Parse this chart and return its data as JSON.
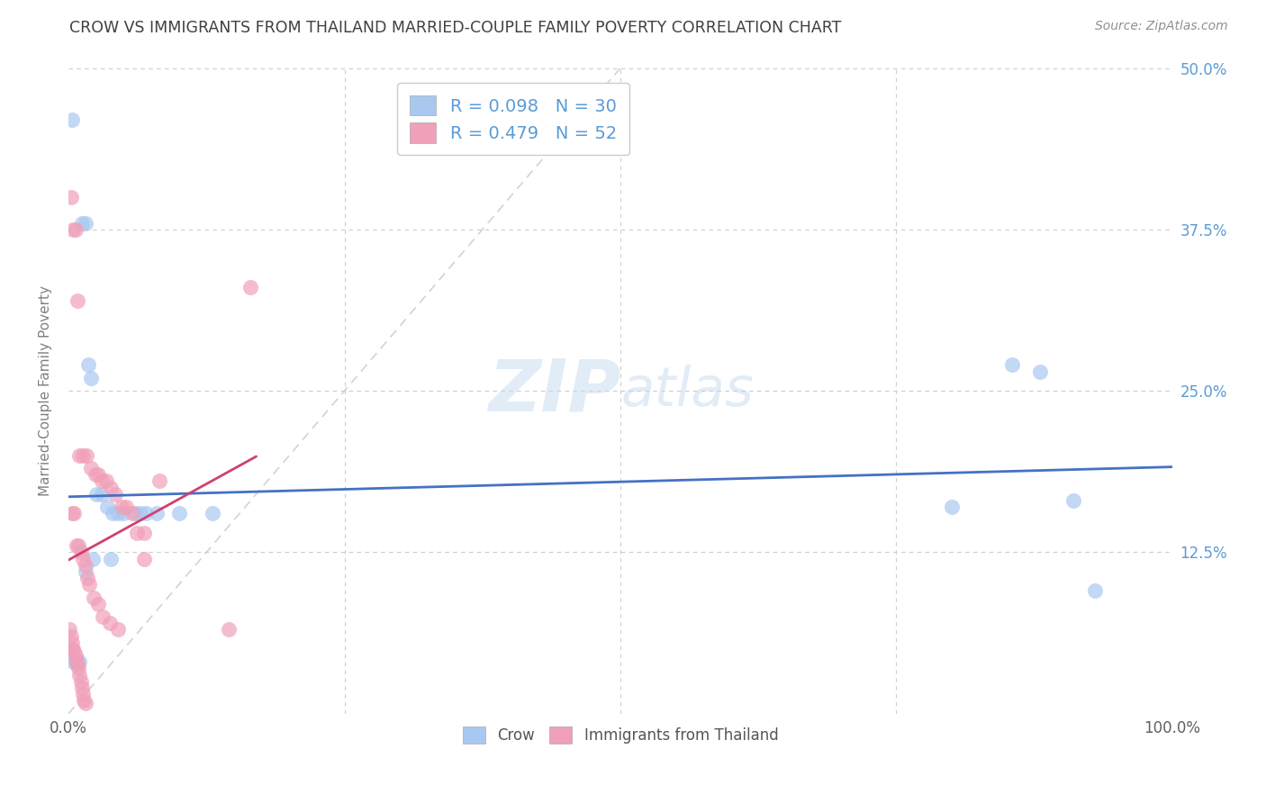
{
  "title": "CROW VS IMMIGRANTS FROM THAILAND MARRIED-COUPLE FAMILY POVERTY CORRELATION CHART",
  "source": "Source: ZipAtlas.com",
  "ylabel": "Married-Couple Family Poverty",
  "crow_color": "#A8C8F0",
  "thailand_color": "#F0A0B8",
  "crow_line_color": "#4472C4",
  "thailand_line_color": "#D04070",
  "identity_line_color": "#C8C8C8",
  "crow_R": 0.098,
  "crow_N": 30,
  "thailand_R": 0.479,
  "thailand_N": 52,
  "background_color": "#FFFFFF",
  "grid_color": "#CCCCCC",
  "tick_color": "#5B9BD5",
  "title_color": "#404040",
  "ylabel_color": "#808080",
  "xlim": [
    0,
    1.0
  ],
  "ylim": [
    0,
    0.5
  ],
  "crow_scatter": [
    [
      0.003,
      0.46
    ],
    [
      0.012,
      0.38
    ],
    [
      0.015,
      0.38
    ],
    [
      0.018,
      0.27
    ],
    [
      0.02,
      0.26
    ],
    [
      0.025,
      0.17
    ],
    [
      0.03,
      0.17
    ],
    [
      0.035,
      0.16
    ],
    [
      0.04,
      0.155
    ],
    [
      0.045,
      0.155
    ],
    [
      0.05,
      0.155
    ],
    [
      0.06,
      0.155
    ],
    [
      0.07,
      0.155
    ],
    [
      0.08,
      0.155
    ],
    [
      0.1,
      0.155
    ],
    [
      0.13,
      0.155
    ],
    [
      0.002,
      0.05
    ],
    [
      0.004,
      0.04
    ],
    [
      0.006,
      0.04
    ],
    [
      0.008,
      0.04
    ],
    [
      0.01,
      0.04
    ],
    [
      0.015,
      0.11
    ],
    [
      0.022,
      0.12
    ],
    [
      0.038,
      0.12
    ],
    [
      0.065,
      0.155
    ],
    [
      0.8,
      0.16
    ],
    [
      0.855,
      0.27
    ],
    [
      0.88,
      0.265
    ],
    [
      0.91,
      0.165
    ],
    [
      0.93,
      0.095
    ]
  ],
  "thailand_scatter": [
    [
      0.002,
      0.4
    ],
    [
      0.004,
      0.375
    ],
    [
      0.006,
      0.375
    ],
    [
      0.008,
      0.32
    ],
    [
      0.01,
      0.2
    ],
    [
      0.013,
      0.2
    ],
    [
      0.016,
      0.2
    ],
    [
      0.02,
      0.19
    ],
    [
      0.024,
      0.185
    ],
    [
      0.027,
      0.185
    ],
    [
      0.03,
      0.18
    ],
    [
      0.034,
      0.18
    ],
    [
      0.038,
      0.175
    ],
    [
      0.042,
      0.17
    ],
    [
      0.048,
      0.16
    ],
    [
      0.052,
      0.16
    ],
    [
      0.058,
      0.155
    ],
    [
      0.062,
      0.14
    ],
    [
      0.068,
      0.14
    ],
    [
      0.003,
      0.155
    ],
    [
      0.005,
      0.155
    ],
    [
      0.007,
      0.13
    ],
    [
      0.009,
      0.13
    ],
    [
      0.011,
      0.125
    ],
    [
      0.013,
      0.12
    ],
    [
      0.015,
      0.115
    ],
    [
      0.017,
      0.105
    ],
    [
      0.019,
      0.1
    ],
    [
      0.023,
      0.09
    ],
    [
      0.027,
      0.085
    ],
    [
      0.031,
      0.075
    ],
    [
      0.037,
      0.07
    ],
    [
      0.045,
      0.065
    ],
    [
      0.001,
      0.065
    ],
    [
      0.002,
      0.06
    ],
    [
      0.003,
      0.055
    ],
    [
      0.004,
      0.05
    ],
    [
      0.005,
      0.048
    ],
    [
      0.006,
      0.045
    ],
    [
      0.007,
      0.04
    ],
    [
      0.008,
      0.038
    ],
    [
      0.009,
      0.035
    ],
    [
      0.01,
      0.03
    ],
    [
      0.011,
      0.025
    ],
    [
      0.012,
      0.02
    ],
    [
      0.013,
      0.015
    ],
    [
      0.014,
      0.01
    ],
    [
      0.015,
      0.008
    ],
    [
      0.165,
      0.33
    ],
    [
      0.082,
      0.18
    ],
    [
      0.068,
      0.12
    ],
    [
      0.145,
      0.065
    ]
  ]
}
